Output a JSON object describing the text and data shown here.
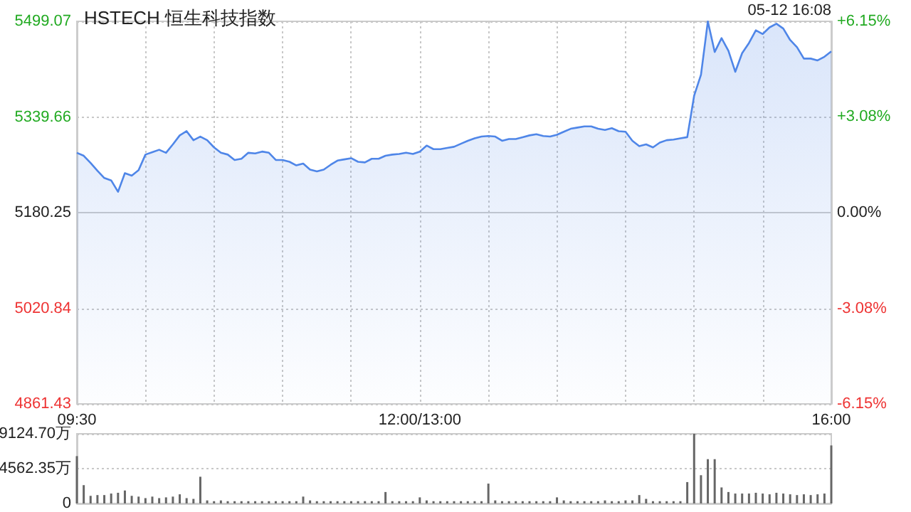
{
  "chart_data": [
    {
      "type": "area",
      "title": "HSTECH 恒生科技指数",
      "annotations": [
        "05-12 16:08"
      ],
      "categories": [
        "09:30",
        null,
        null,
        null,
        null,
        null,
        null,
        null,
        null,
        null,
        null,
        null,
        null,
        null,
        null,
        null,
        null,
        null,
        null,
        null,
        null,
        null,
        null,
        null,
        null,
        null,
        null,
        null,
        null,
        null,
        null,
        null,
        null,
        null,
        null,
        null,
        null,
        null,
        null,
        null,
        null,
        null,
        null,
        null,
        null,
        null,
        null,
        null,
        null,
        null,
        "12:00/13:00",
        null,
        null,
        null,
        null,
        null,
        null,
        null,
        null,
        null,
        null,
        null,
        null,
        null,
        null,
        null,
        null,
        null,
        null,
        null,
        null,
        null,
        null,
        null,
        null,
        null,
        null,
        null,
        null,
        null,
        null,
        null,
        null,
        null,
        null,
        null,
        null,
        null,
        null,
        null,
        null,
        null,
        null,
        null,
        null,
        null,
        null,
        null,
        null,
        null,
        null,
        null,
        null,
        null,
        null,
        null,
        null,
        null,
        null,
        null,
        "16:00"
      ],
      "ylim": [
        4861.43,
        5499.07
      ],
      "yticks": [
        4861.43,
        5020.84,
        5180.25,
        5339.66,
        5499.07
      ],
      "y2lim": [
        -6.15,
        6.15
      ],
      "y2ticks": [
        {
          "value": -6.15,
          "label": "-6.15%"
        },
        {
          "value": -3.08,
          "label": "-3.08%"
        },
        {
          "value": 0,
          "label": "0.00%"
        },
        {
          "value": 3.08,
          "label": "+3.08%"
        },
        {
          "value": 6.15,
          "label": "+6.15%"
        }
      ],
      "grid": true,
      "series": [
        {
          "color": "#4f86e8",
          "values": [
            5280,
            5275,
            5263,
            5250,
            5238,
            5234,
            5215,
            5246,
            5242,
            5251,
            5277,
            5281,
            5285,
            5280,
            5294,
            5309,
            5316,
            5301,
            5307,
            5301,
            5289,
            5280,
            5277,
            5268,
            5270,
            5280,
            5279,
            5282,
            5280,
            5268,
            5268,
            5265,
            5259,
            5262,
            5252,
            5249,
            5252,
            5260,
            5267,
            5269,
            5271,
            5265,
            5264,
            5270,
            5270,
            5275,
            5277,
            5278,
            5280,
            5278,
            5282,
            5292,
            5286,
            5286,
            5288,
            5290,
            5295,
            5300,
            5304,
            5307,
            5308,
            5307,
            5300,
            5303,
            5303,
            5306,
            5309,
            5311,
            5308,
            5307,
            5310,
            5315,
            5320,
            5322,
            5324,
            5324,
            5320,
            5318,
            5321,
            5316,
            5315,
            5300,
            5291,
            5294,
            5289,
            5297,
            5301,
            5302,
            5304,
            5306,
            5375,
            5410,
            5499,
            5448,
            5471,
            5450,
            5415,
            5446,
            5463,
            5484,
            5478,
            5489,
            5495,
            5487,
            5468,
            5456,
            5437,
            5437,
            5434,
            5440,
            5449
          ]
        }
      ]
    },
    {
      "type": "bar",
      "categories": [
        null,
        null,
        null,
        null,
        null,
        null,
        null,
        null,
        null,
        null,
        null,
        null,
        null,
        null,
        null,
        null,
        null,
        null,
        null,
        null,
        null,
        null,
        null,
        null,
        null,
        null,
        null,
        null,
        null,
        null,
        null,
        null,
        null,
        null,
        null,
        null,
        null,
        null,
        null,
        null,
        null,
        null,
        null,
        null,
        null,
        null,
        null,
        null,
        null,
        null,
        null,
        null,
        null,
        null,
        null,
        null,
        null,
        null,
        null,
        null,
        null,
        null,
        null,
        null,
        null,
        null,
        null,
        null,
        null,
        null,
        null,
        null,
        null,
        null,
        null,
        null,
        null,
        null,
        null,
        null,
        null,
        null,
        null,
        null,
        null,
        null,
        null,
        null,
        null,
        null,
        null,
        null,
        null,
        null,
        null,
        null,
        null,
        null,
        null,
        null,
        null,
        null,
        null,
        null,
        null,
        null,
        null,
        null,
        null,
        null,
        null
      ],
      "ylim": [
        0,
        9124.7
      ],
      "yticks": [
        0,
        {
          "value": 4562.35,
          "label": "4562.35万"
        },
        {
          "value": 9124.7,
          "label": "9124.70万"
        }
      ],
      "grid": "y",
      "tick_labels": "y",
      "series": [
        {
          "color": "#666666",
          "values": [
            6200,
            2400,
            1000,
            1100,
            1100,
            1300,
            1400,
            1700,
            1000,
            900,
            700,
            900,
            700,
            800,
            900,
            1200,
            700,
            600,
            3500,
            400,
            300,
            400,
            300,
            300,
            300,
            300,
            300,
            300,
            300,
            300,
            300,
            300,
            300,
            900,
            400,
            300,
            300,
            300,
            300,
            300,
            300,
            300,
            300,
            300,
            300,
            1500,
            300,
            300,
            300,
            300,
            800,
            400,
            300,
            300,
            300,
            300,
            300,
            300,
            300,
            300,
            2600,
            400,
            300,
            300,
            300,
            300,
            300,
            300,
            300,
            300,
            800,
            400,
            300,
            300,
            300,
            300,
            300,
            400,
            300,
            300,
            400,
            400,
            1100,
            600,
            300,
            300,
            300,
            300,
            300,
            2800,
            9124.7,
            3700,
            5800,
            5800,
            2100,
            1500,
            1300,
            1300,
            1300,
            1400,
            1300,
            1200,
            1400,
            1300,
            1200,
            1100,
            1200,
            1100,
            1200,
            1300,
            7600
          ]
        }
      ]
    }
  ]
}
